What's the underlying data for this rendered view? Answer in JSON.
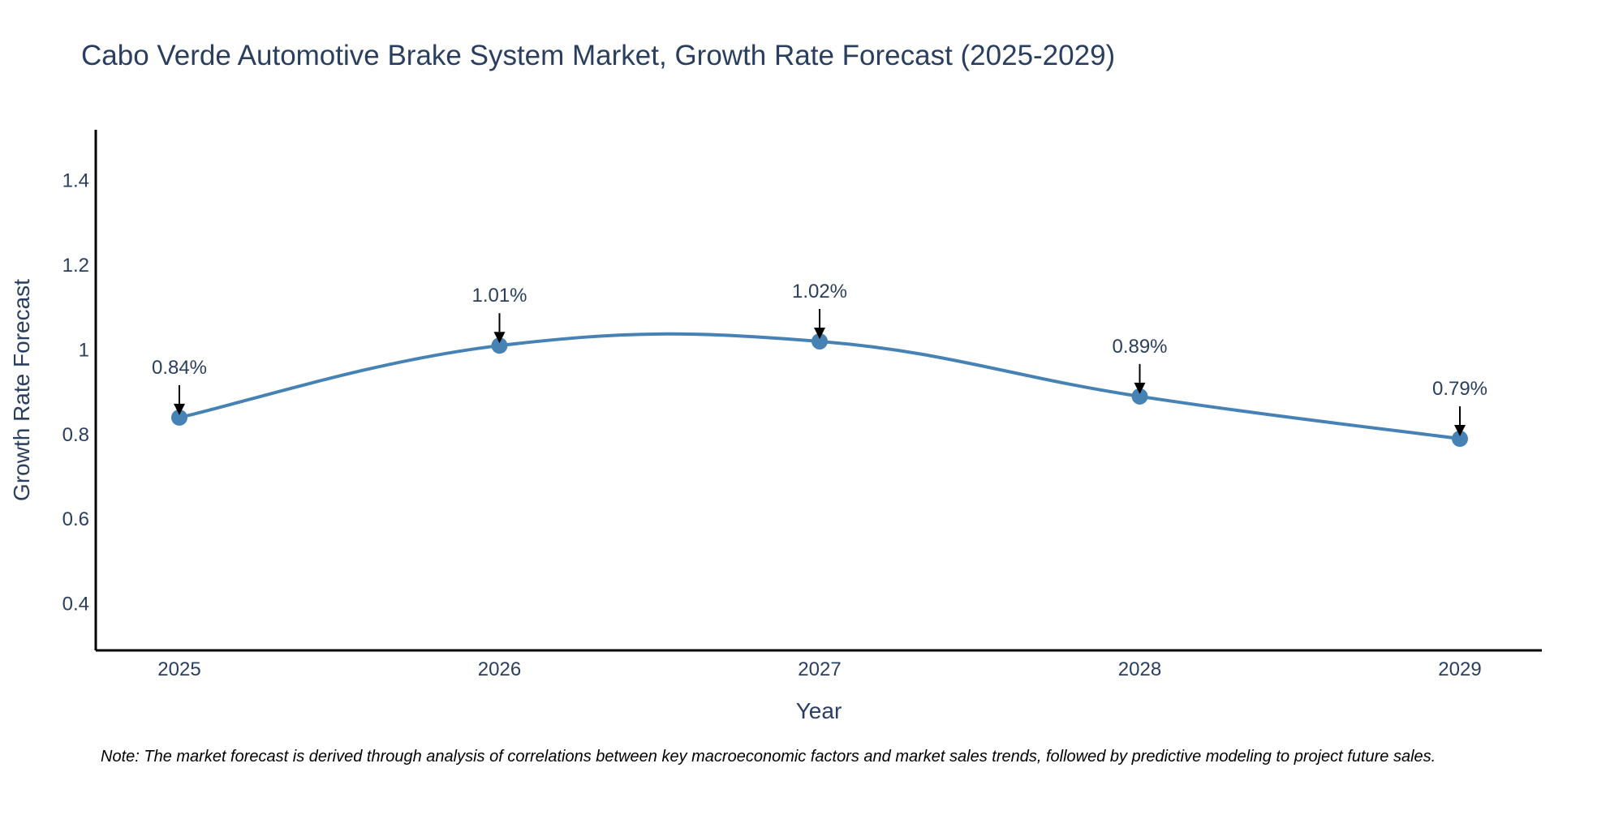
{
  "colors": {
    "text": "#2a3f5f",
    "line": "#4682b4",
    "marker": "#4682b4",
    "axis": "#000000",
    "arrow": "#000000"
  },
  "chart_data": {
    "type": "line",
    "title": "Cabo Verde Automotive Brake System Market, Growth Rate Forecast (2025-2029)",
    "xlabel": "Year",
    "ylabel": "Growth Rate Forecast",
    "x": [
      "2025",
      "2026",
      "2027",
      "2028",
      "2029"
    ],
    "values": [
      0.84,
      1.01,
      1.02,
      0.89,
      0.79
    ],
    "data_labels": [
      "0.84%",
      "1.01%",
      "1.02%",
      "0.89%",
      "0.79%"
    ],
    "ylim": [
      0.29,
      1.52
    ],
    "yticks": [
      0.4,
      0.6,
      0.8,
      1,
      1.2,
      1.4
    ],
    "ytick_labels": [
      "0.4",
      "0.6",
      "0.8",
      "1",
      "1.2",
      "1.4"
    ],
    "grid": false,
    "line_shape": "spline"
  },
  "note": "Note: The market forecast is derived through analysis of correlations between key macroeconomic factors and market sales trends, followed by predictive modeling to project future sales."
}
